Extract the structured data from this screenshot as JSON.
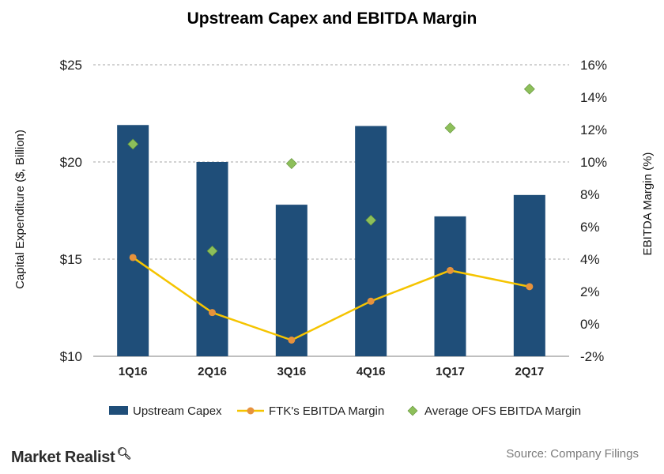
{
  "chart_data": {
    "type": "bar",
    "title": "Upstream  Capex and EBITDA Margin",
    "categories": [
      "1Q16",
      "2Q16",
      "3Q16",
      "4Q16",
      "1Q17",
      "2Q17"
    ],
    "series": [
      {
        "name": "Upstream Capex",
        "type": "bar",
        "axis": "left",
        "color": "#1f4e79",
        "values": [
          21.9,
          20.0,
          17.8,
          21.85,
          17.2,
          18.3
        ]
      },
      {
        "name": "FTK's EBITDA Margin",
        "type": "line",
        "axis": "right",
        "color": "#f5c400",
        "marker_color": "#e7923c",
        "values": [
          4.1,
          0.7,
          -1.0,
          1.4,
          3.3,
          2.3
        ]
      },
      {
        "name": "Average OFS EBITDA Margin",
        "type": "scatter",
        "marker": "diamond",
        "axis": "right",
        "color": "#8dbf5a",
        "values": [
          11.1,
          4.5,
          9.9,
          6.4,
          12.1,
          14.5
        ]
      }
    ],
    "y_left": {
      "label": "Capital Expenditure ($, Billion)",
      "min": 10,
      "max": 25,
      "ticks": [
        10,
        15,
        20,
        25
      ],
      "tick_labels": [
        "$10",
        "$15",
        "$20",
        "$25"
      ]
    },
    "y_right": {
      "label": "EBITDA Margin (%)",
      "min": -2,
      "max": 16,
      "ticks": [
        -2,
        0,
        2,
        4,
        6,
        8,
        10,
        12,
        14,
        16
      ],
      "tick_labels": [
        "-2%",
        "0%",
        "2%",
        "4%",
        "6%",
        "8%",
        "10%",
        "12%",
        "14%",
        "16%"
      ]
    },
    "grid": true,
    "legend": "bottom"
  },
  "footer": {
    "brand": "Market Realist",
    "brand_icon": "magnifier-icon",
    "source": "Source: Company Filings"
  }
}
